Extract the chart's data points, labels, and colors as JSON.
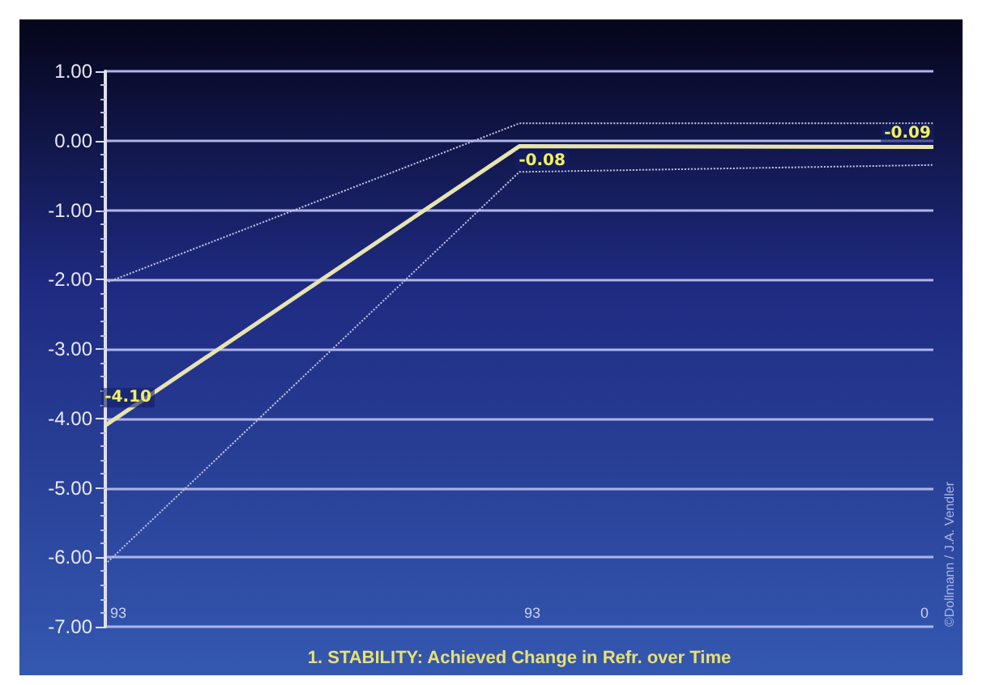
{
  "chart_data": {
    "type": "line",
    "xlabel": "1. STABILITY: Achieved Change in Refr. over Time",
    "categories": [
      null,
      null,
      null
    ],
    "series": [
      {
        "color": "#e8e4b0",
        "values": [
          -4.1,
          -0.08,
          -0.09
        ],
        "value_labels": [
          "-4.10",
          "-0.08",
          "-0.09"
        ]
      },
      {
        "color": "#c8c8e8",
        "values": [
          -2.05,
          0.25,
          0.25
        ],
        "line_style": "dotted"
      },
      {
        "color": "#c8c8e8",
        "values": [
          -6.1,
          -0.45,
          -0.35
        ],
        "line_style": "dotted"
      }
    ],
    "ylim": [
      -7,
      1
    ],
    "yticks": [
      {
        "value": -7,
        "label": "-7.00"
      },
      {
        "value": -6,
        "label": "-6.00"
      },
      {
        "value": -5,
        "label": "-5.00"
      },
      {
        "value": -4,
        "label": "-4.00"
      },
      {
        "value": -3,
        "label": "-3.00"
      },
      {
        "value": -2,
        "label": "-2.00"
      },
      {
        "value": -1,
        "label": "-1.00"
      },
      {
        "value": 0,
        "label": "0.00"
      },
      {
        "value": 1,
        "label": "1.00"
      }
    ],
    "grid": "y",
    "line_style": "solid",
    "annotations": [
      "93",
      "93",
      "0",
      "©Dollmann / J.A. Vendler"
    ]
  }
}
